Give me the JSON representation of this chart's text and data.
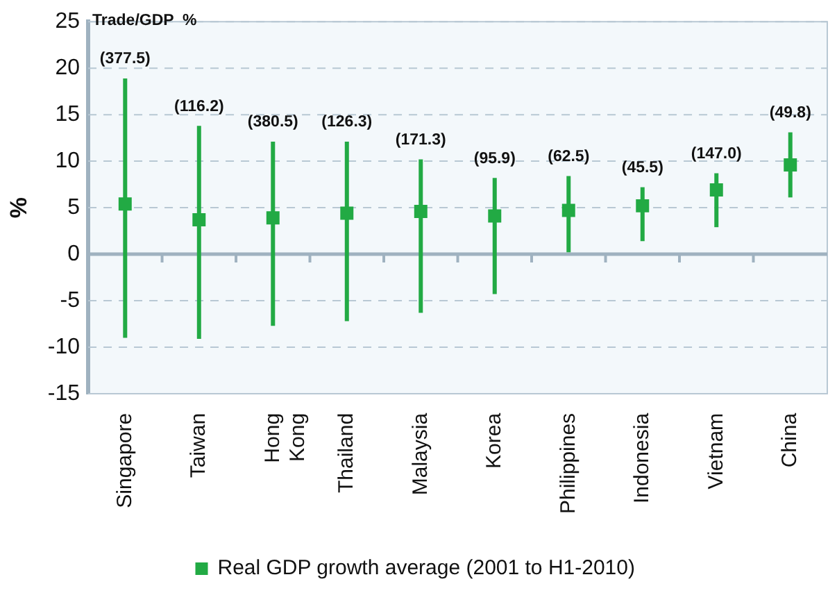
{
  "chart_data": {
    "type": "scatter",
    "ylabel": "%",
    "categories": [
      "Singapore",
      "Taiwan",
      "Hong Kong",
      "Thailand",
      "Malaysia",
      "Korea",
      "Philippines",
      "Indonesia",
      "Vietnam",
      "China"
    ],
    "series": [
      {
        "name": "Real GDP growth average (2001 to H1-2010)",
        "color": "#22aa44",
        "values": [
          5.4,
          3.7,
          3.9,
          4.4,
          4.6,
          4.1,
          4.7,
          5.2,
          6.9,
          9.6
        ],
        "errors": [
          [
            -9.0,
            18.9
          ],
          [
            -9.1,
            13.8
          ],
          [
            -7.7,
            12.1
          ],
          [
            -7.2,
            12.1
          ],
          [
            -6.3,
            10.2
          ],
          [
            -4.3,
            8.2
          ],
          [
            0.2,
            8.4
          ],
          [
            1.4,
            7.2
          ],
          [
            2.9,
            8.7
          ],
          [
            6.1,
            13.1
          ]
        ]
      }
    ],
    "ylim": [
      -15,
      25
    ],
    "yticks": [
      -15,
      -10,
      -5,
      0,
      5,
      10,
      15,
      20,
      25
    ],
    "grid": "y",
    "legend": "bottom",
    "marker": "square",
    "annotations": [
      "Trade/GDP  %",
      "(377.5)",
      "(116.2)",
      "(380.5)",
      "(126.3)",
      "(171.3)",
      "(95.9)",
      "(62.5)",
      "(45.5)",
      "(147.0)",
      "(49.8)"
    ]
  }
}
